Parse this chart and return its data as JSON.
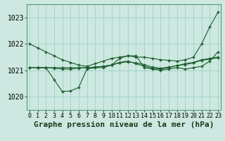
{
  "title": "Graphe pression niveau de la mer (hPa)",
  "ylim": [
    1019.5,
    1023.5
  ],
  "yticks": [
    1020,
    1021,
    1022,
    1023
  ],
  "xticks": [
    0,
    1,
    2,
    3,
    4,
    5,
    6,
    7,
    8,
    9,
    10,
    11,
    12,
    13,
    14,
    15,
    16,
    17,
    18,
    19,
    20,
    21,
    22,
    23
  ],
  "background_color": "#cce8e0",
  "grid_color": "#99ccc0",
  "line_color": "#1a5c2a",
  "line1_x": [
    0,
    1,
    2,
    3,
    4,
    5,
    6,
    7,
    8,
    9,
    10,
    11,
    12,
    13,
    14,
    15,
    16,
    17,
    18,
    19,
    20,
    21,
    22,
    23
  ],
  "line1_y": [
    1022.0,
    1021.85,
    1021.7,
    1021.55,
    1021.4,
    1021.3,
    1021.2,
    1021.15,
    1021.25,
    1021.35,
    1021.45,
    1021.5,
    1021.55,
    1021.5,
    1021.5,
    1021.45,
    1021.4,
    1021.38,
    1021.35,
    1021.4,
    1021.5,
    1022.0,
    1022.65,
    1023.2
  ],
  "line2_x": [
    0,
    1,
    2,
    3,
    4,
    5,
    6,
    7,
    8,
    9,
    10,
    11,
    12,
    13,
    14,
    15,
    16,
    17,
    18,
    19,
    20,
    21,
    22,
    23
  ],
  "line2_y": [
    1021.1,
    1021.1,
    1021.1,
    1020.65,
    1020.2,
    1020.22,
    1020.35,
    1021.05,
    1021.1,
    1021.1,
    1021.2,
    1021.45,
    1021.55,
    1021.55,
    1021.1,
    1021.05,
    1021.0,
    1021.05,
    1021.1,
    1021.05,
    1021.1,
    1021.15,
    1021.35,
    1021.7
  ],
  "line3_x": [
    0,
    1,
    2,
    3,
    4,
    5,
    6,
    7,
    8,
    9,
    10,
    11,
    12,
    13,
    14,
    15,
    16,
    17,
    18,
    19,
    20,
    21,
    22,
    23
  ],
  "line3_y": [
    1021.1,
    1021.1,
    1021.1,
    1021.1,
    1021.1,
    1021.1,
    1021.1,
    1021.1,
    1021.12,
    1021.15,
    1021.2,
    1021.3,
    1021.35,
    1021.25,
    1021.15,
    1021.08,
    1021.05,
    1021.1,
    1021.18,
    1021.25,
    1021.3,
    1021.4,
    1021.45,
    1021.5
  ],
  "line4_x": [
    1,
    2,
    3,
    4,
    5,
    6,
    7,
    8,
    9,
    10,
    11,
    12,
    13,
    14,
    15,
    16,
    17,
    18,
    19,
    20,
    21,
    22,
    23
  ],
  "line4_y": [
    1021.1,
    1021.1,
    1021.08,
    1021.05,
    1021.05,
    1021.08,
    1021.1,
    1021.12,
    1021.15,
    1021.2,
    1021.28,
    1021.32,
    1021.28,
    1021.22,
    1021.12,
    1021.08,
    1021.12,
    1021.18,
    1021.22,
    1021.28,
    1021.38,
    1021.42,
    1021.48
  ],
  "title_fontsize": 8,
  "tick_fontsize": 6,
  "figwidth": 3.2,
  "figheight": 2.0,
  "dpi": 100
}
